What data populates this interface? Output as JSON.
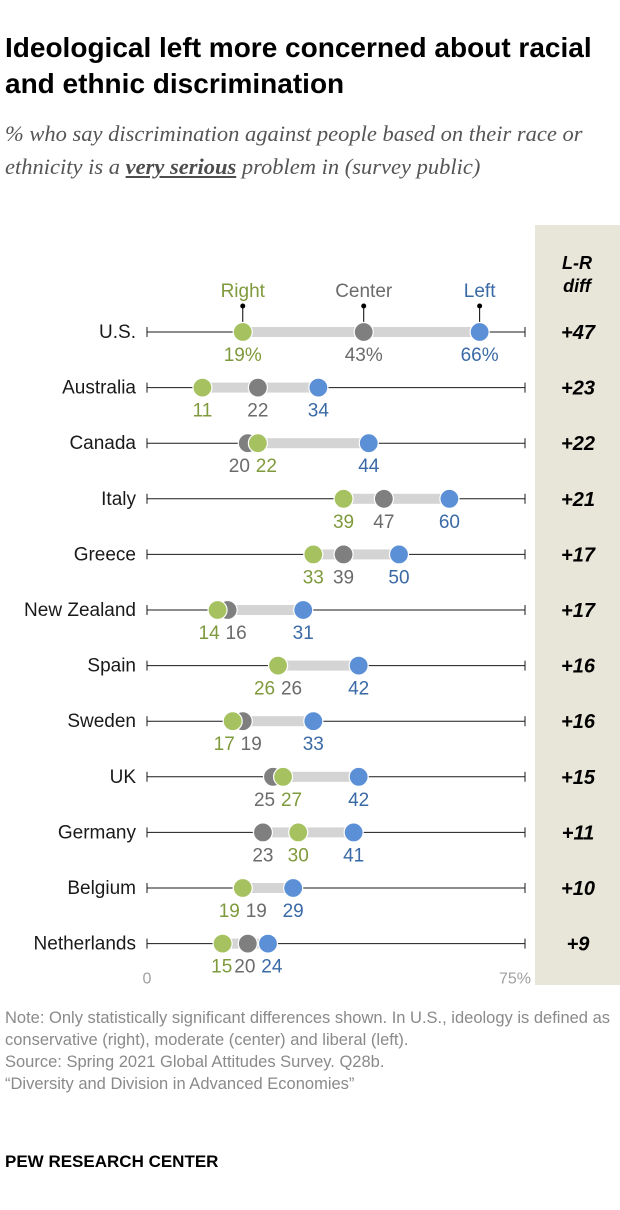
{
  "title": "Ideological left more concerned about racial and ethnic discrimination",
  "subtitle": {
    "before": "% who say discrimination against people based on their race or ethnicity is a ",
    "emphasis": "very serious",
    "after": " problem in (survey public)"
  },
  "chart_data": {
    "type": "dot",
    "legend": [
      "Right",
      "Center",
      "Left"
    ],
    "diff_header": [
      "L-R",
      "diff"
    ],
    "xlim": [
      0,
      75
    ],
    "axis_labels": [
      "0",
      "75%"
    ],
    "colors": {
      "right": "#a6c260",
      "center": "#7f7f7f",
      "left": "#5b8fd6",
      "right_text": "#7f9a3c",
      "center_text": "#6b6b6b",
      "left_text": "#3a6aa6",
      "panel": "#e8e6d8",
      "bar": "#d4d4d4"
    },
    "rows": [
      {
        "country": "U.S.",
        "right": 19,
        "center": 43,
        "left": 66,
        "right_label": "19%",
        "center_label": "43%",
        "left_label": "66%",
        "diff": "+47"
      },
      {
        "country": "Australia",
        "right": 11,
        "center": 22,
        "left": 34,
        "right_label": "11",
        "center_label": "22",
        "left_label": "34",
        "diff": "+23"
      },
      {
        "country": "Canada",
        "right": 22,
        "center": 20,
        "left": 44,
        "right_label": "22",
        "center_label": "20",
        "left_label": "44",
        "diff": "+22"
      },
      {
        "country": "Italy",
        "right": 39,
        "center": 47,
        "left": 60,
        "right_label": "39",
        "center_label": "47",
        "left_label": "60",
        "diff": "+21"
      },
      {
        "country": "Greece",
        "right": 33,
        "center": 39,
        "left": 50,
        "right_label": "33",
        "center_label": "39",
        "left_label": "50",
        "diff": "+17"
      },
      {
        "country": "New Zealand",
        "right": 14,
        "center": 16,
        "left": 31,
        "right_label": "14",
        "center_label": "16",
        "left_label": "31",
        "diff": "+17"
      },
      {
        "country": "Spain",
        "right": 26,
        "center": 26,
        "left": 42,
        "right_label": "26",
        "center_label": "26",
        "left_label": "42",
        "diff": "+16"
      },
      {
        "country": "Sweden",
        "right": 17,
        "center": 19,
        "left": 33,
        "right_label": "17",
        "center_label": "19",
        "left_label": "33",
        "diff": "+16"
      },
      {
        "country": "UK",
        "right": 27,
        "center": 25,
        "left": 42,
        "right_label": "27",
        "center_label": "25",
        "left_label": "42",
        "diff": "+15"
      },
      {
        "country": "Germany",
        "right": 30,
        "center": 23,
        "left": 41,
        "right_label": "30",
        "center_label": "23",
        "left_label": "41",
        "diff": "+11"
      },
      {
        "country": "Belgium",
        "right": 19,
        "center": 19,
        "left": 29,
        "right_label": "19",
        "center_label": "19",
        "left_label": "29",
        "diff": "+10"
      },
      {
        "country": "Netherlands",
        "right": 15,
        "center": 20,
        "left": 24,
        "right_label": "15",
        "center_label": "20",
        "left_label": "24",
        "diff": "+9"
      }
    ]
  },
  "notes": {
    "note": "Note: Only statistically significant differences shown. In U.S., ideology is defined as conservative (right), moderate (center) and liberal (left).",
    "source": "Source: Spring 2021 Global Attitudes Survey. Q28b.",
    "report": "“Diversity and Division in Advanced Economies”"
  },
  "footer": "PEW RESEARCH CENTER"
}
